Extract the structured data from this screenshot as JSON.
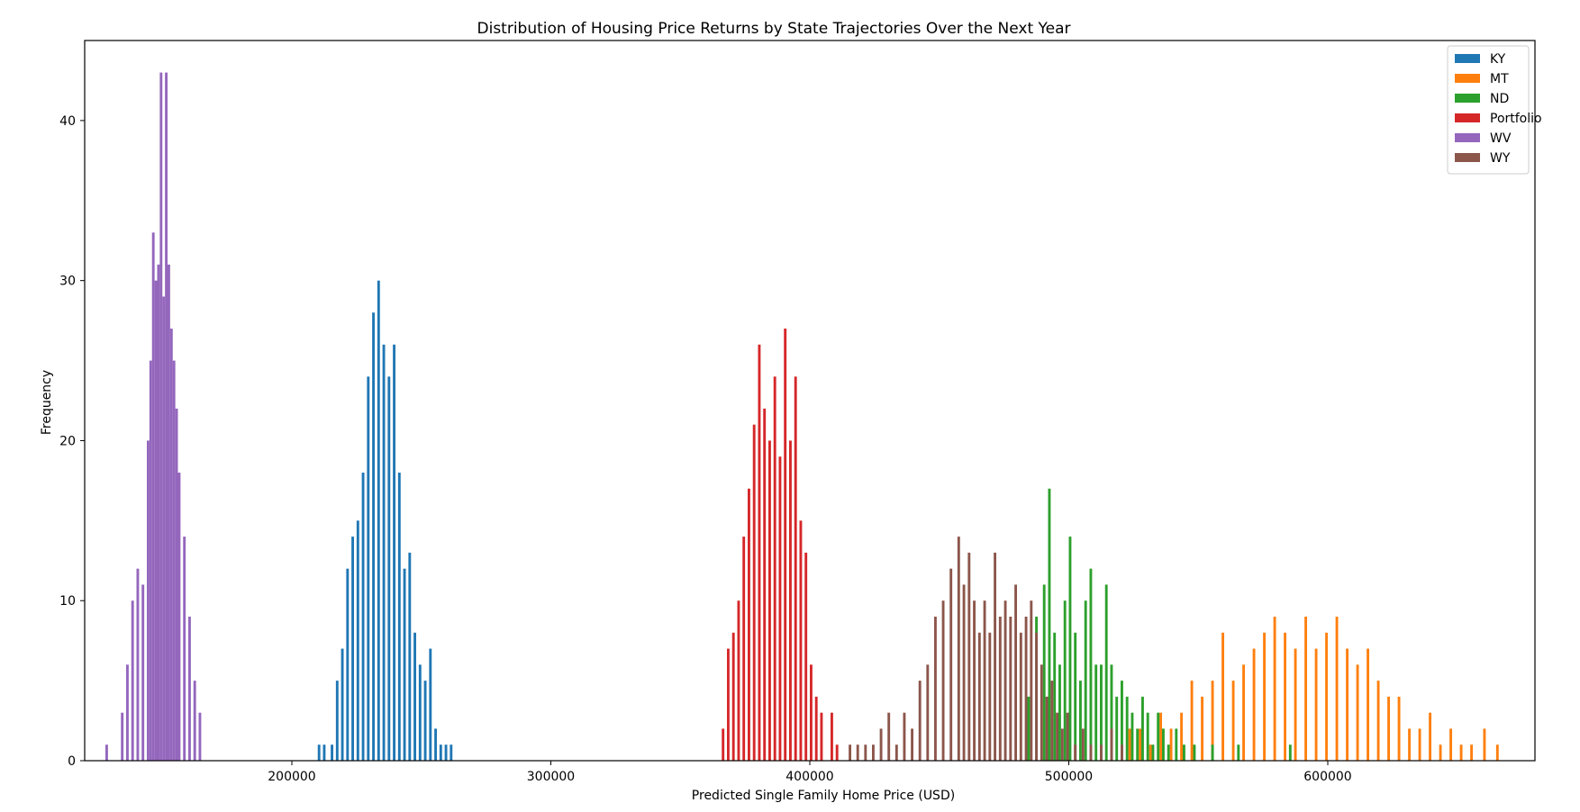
{
  "chart_data": {
    "type": "histogram",
    "title": "Distribution of Housing Price Returns by State Trajectories Over the Next Year",
    "xlabel": "Predicted Single Family Home Price (USD)",
    "ylabel": "Frequency",
    "xlim": [
      120000,
      680000
    ],
    "ylim": [
      0,
      45
    ],
    "xticks": [
      200000,
      300000,
      400000,
      500000,
      600000
    ],
    "yticks": [
      0,
      10,
      20,
      30,
      40
    ],
    "grid": false,
    "legend_position": "top-right",
    "bin_width": 1000,
    "series": [
      {
        "name": "KY",
        "color": "#1f77b4",
        "bins": [
          [
            210000,
            1
          ],
          [
            212000,
            1
          ],
          [
            215000,
            1
          ],
          [
            217000,
            5
          ],
          [
            219000,
            7
          ],
          [
            221000,
            12
          ],
          [
            223000,
            14
          ],
          [
            225000,
            15
          ],
          [
            227000,
            18
          ],
          [
            229000,
            24
          ],
          [
            231000,
            28
          ],
          [
            233000,
            30
          ],
          [
            235000,
            26
          ],
          [
            237000,
            24
          ],
          [
            239000,
            26
          ],
          [
            241000,
            18
          ],
          [
            243000,
            12
          ],
          [
            245000,
            13
          ],
          [
            247000,
            8
          ],
          [
            249000,
            6
          ],
          [
            251000,
            5
          ],
          [
            253000,
            7
          ],
          [
            255000,
            2
          ],
          [
            257000,
            1
          ],
          [
            259000,
            1
          ],
          [
            261000,
            1
          ]
        ]
      },
      {
        "name": "MT",
        "color": "#ff7f0e",
        "bins": [
          [
            523000,
            2
          ],
          [
            527000,
            2
          ],
          [
            531000,
            1
          ],
          [
            535000,
            3
          ],
          [
            539000,
            2
          ],
          [
            543000,
            3
          ],
          [
            547000,
            5
          ],
          [
            551000,
            4
          ],
          [
            555000,
            5
          ],
          [
            559000,
            8
          ],
          [
            563000,
            5
          ],
          [
            567000,
            6
          ],
          [
            571000,
            7
          ],
          [
            575000,
            8
          ],
          [
            579000,
            9
          ],
          [
            583000,
            8
          ],
          [
            587000,
            7
          ],
          [
            591000,
            9
          ],
          [
            595000,
            7
          ],
          [
            599000,
            8
          ],
          [
            603000,
            9
          ],
          [
            607000,
            7
          ],
          [
            611000,
            6
          ],
          [
            615000,
            7
          ],
          [
            619000,
            5
          ],
          [
            623000,
            4
          ],
          [
            627000,
            4
          ],
          [
            631000,
            2
          ],
          [
            635000,
            2
          ],
          [
            639000,
            3
          ],
          [
            643000,
            1
          ],
          [
            647000,
            2
          ],
          [
            651000,
            1
          ],
          [
            655000,
            1
          ],
          [
            660000,
            2
          ],
          [
            665000,
            1
          ]
        ]
      },
      {
        "name": "ND",
        "color": "#2ca02c",
        "bins": [
          [
            484000,
            4
          ],
          [
            487000,
            9
          ],
          [
            490000,
            11
          ],
          [
            492000,
            17
          ],
          [
            494000,
            8
          ],
          [
            496000,
            6
          ],
          [
            498000,
            10
          ],
          [
            500000,
            14
          ],
          [
            502000,
            8
          ],
          [
            504000,
            5
          ],
          [
            506000,
            10
          ],
          [
            508000,
            12
          ],
          [
            510000,
            6
          ],
          [
            512000,
            6
          ],
          [
            514000,
            11
          ],
          [
            516000,
            6
          ],
          [
            518000,
            4
          ],
          [
            520000,
            5
          ],
          [
            522000,
            4
          ],
          [
            524000,
            3
          ],
          [
            526000,
            2
          ],
          [
            528000,
            4
          ],
          [
            530000,
            3
          ],
          [
            532000,
            1
          ],
          [
            534000,
            3
          ],
          [
            536000,
            2
          ],
          [
            538000,
            1
          ],
          [
            541000,
            2
          ],
          [
            544000,
            1
          ],
          [
            548000,
            1
          ],
          [
            555000,
            1
          ],
          [
            565000,
            1
          ],
          [
            585000,
            1
          ]
        ]
      },
      {
        "name": "Portfolio",
        "color": "#d62728",
        "bins": [
          [
            366000,
            2
          ],
          [
            368000,
            7
          ],
          [
            370000,
            8
          ],
          [
            372000,
            10
          ],
          [
            374000,
            14
          ],
          [
            376000,
            17
          ],
          [
            378000,
            21
          ],
          [
            380000,
            26
          ],
          [
            382000,
            22
          ],
          [
            384000,
            20
          ],
          [
            386000,
            24
          ],
          [
            388000,
            19
          ],
          [
            390000,
            27
          ],
          [
            392000,
            20
          ],
          [
            394000,
            24
          ],
          [
            396000,
            15
          ],
          [
            398000,
            13
          ],
          [
            400000,
            6
          ],
          [
            402000,
            4
          ],
          [
            404000,
            3
          ],
          [
            408000,
            3
          ],
          [
            410000,
            1
          ]
        ]
      },
      {
        "name": "WV",
        "color": "#9467bd",
        "bins": [
          [
            128000,
            1
          ],
          [
            134000,
            3
          ],
          [
            136000,
            6
          ],
          [
            138000,
            10
          ],
          [
            140000,
            12
          ],
          [
            142000,
            11
          ],
          [
            144000,
            20
          ],
          [
            145000,
            25
          ],
          [
            146000,
            33
          ],
          [
            147000,
            30
          ],
          [
            148000,
            31
          ],
          [
            149000,
            43
          ],
          [
            150000,
            29
          ],
          [
            151000,
            43
          ],
          [
            152000,
            31
          ],
          [
            153000,
            27
          ],
          [
            154000,
            25
          ],
          [
            155000,
            22
          ],
          [
            156000,
            18
          ],
          [
            158000,
            14
          ],
          [
            160000,
            9
          ],
          [
            162000,
            5
          ],
          [
            164000,
            3
          ]
        ]
      },
      {
        "name": "WY",
        "color": "#8c564b",
        "bins": [
          [
            415000,
            1
          ],
          [
            418000,
            1
          ],
          [
            421000,
            1
          ],
          [
            424000,
            1
          ],
          [
            427000,
            2
          ],
          [
            430000,
            3
          ],
          [
            433000,
            1
          ],
          [
            436000,
            3
          ],
          [
            439000,
            2
          ],
          [
            442000,
            5
          ],
          [
            445000,
            6
          ],
          [
            448000,
            9
          ],
          [
            451000,
            10
          ],
          [
            454000,
            12
          ],
          [
            457000,
            14
          ],
          [
            459000,
            11
          ],
          [
            461000,
            13
          ],
          [
            463000,
            10
          ],
          [
            465000,
            8
          ],
          [
            467000,
            10
          ],
          [
            469000,
            8
          ],
          [
            471000,
            13
          ],
          [
            473000,
            9
          ],
          [
            475000,
            10
          ],
          [
            477000,
            9
          ],
          [
            479000,
            11
          ],
          [
            481000,
            8
          ],
          [
            483000,
            9
          ],
          [
            485000,
            10
          ],
          [
            487000,
            8
          ],
          [
            489000,
            6
          ],
          [
            491000,
            4
          ],
          [
            493000,
            5
          ],
          [
            495000,
            3
          ],
          [
            497000,
            2
          ],
          [
            499000,
            3
          ],
          [
            502000,
            1
          ],
          [
            505000,
            2
          ],
          [
            508000,
            1
          ],
          [
            512000,
            1
          ],
          [
            516000,
            2
          ],
          [
            520000,
            1
          ]
        ]
      }
    ]
  }
}
